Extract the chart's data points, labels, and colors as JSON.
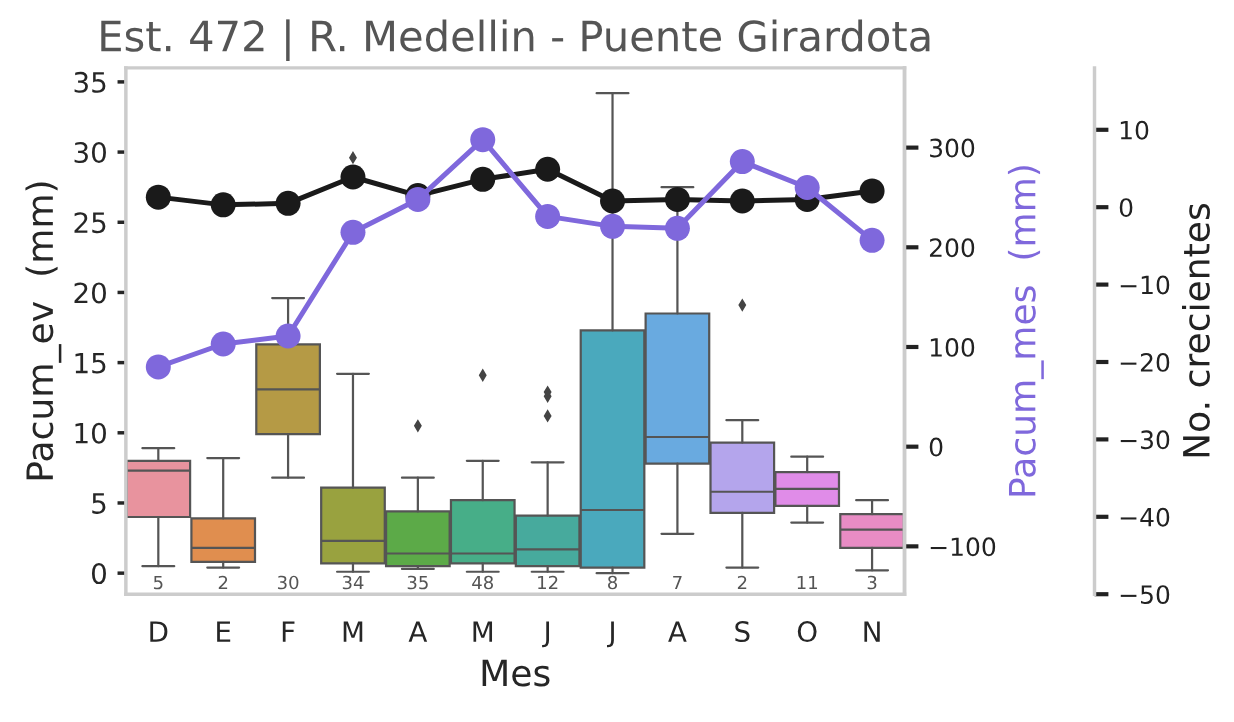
{
  "chart_data": {
    "type": "box",
    "title": "Est. 472 | R. Medellin - Puente Girardota",
    "xlabel": "Mes",
    "ylabel": "Pacum_ev  (mm)",
    "y2label": "Pacum_mes  (mm)",
    "y3label": "No. crecientes",
    "categories": [
      "D",
      "E",
      "F",
      "M",
      "A",
      "M",
      "J",
      "J",
      "A",
      "S",
      "O",
      "N"
    ],
    "colors": [
      "#e8939e",
      "#e08e4f",
      "#b59a45",
      "#99a23f",
      "#5caa48",
      "#47ae88",
      "#47aa9d",
      "#4aa9bd",
      "#69aae0",
      "#b4a5ec",
      "#e08ce8",
      "#e88cc4"
    ],
    "boxes": [
      {
        "low": 0.5,
        "q1": 4.0,
        "median": 7.3,
        "q3": 8.0,
        "high": 8.9
      },
      {
        "low": 0.4,
        "q1": 0.8,
        "median": 1.8,
        "q3": 3.9,
        "high": 8.2
      },
      {
        "low": 6.8,
        "q1": 9.9,
        "median": 13.1,
        "q3": 16.3,
        "high": 19.6
      },
      {
        "low": 0.1,
        "q1": 0.7,
        "median": 2.3,
        "q3": 6.1,
        "high": 14.2,
        "outliers": [
          29.6
        ]
      },
      {
        "low": 0.3,
        "q1": 0.5,
        "median": 1.4,
        "q3": 4.4,
        "high": 6.8,
        "outliers": [
          10.5
        ]
      },
      {
        "low": 0.1,
        "q1": 0.7,
        "median": 1.4,
        "q3": 5.2,
        "high": 8.0,
        "outliers": [
          14.1
        ]
      },
      {
        "low": 0.1,
        "q1": 0.5,
        "median": 1.7,
        "q3": 4.1,
        "high": 7.9,
        "outliers": [
          12.9,
          12.6,
          11.2
        ]
      },
      {
        "low": 0.0,
        "q1": 0.4,
        "median": 4.5,
        "q3": 17.3,
        "high": 34.2
      },
      {
        "low": 2.8,
        "q1": 7.8,
        "median": 9.7,
        "q3": 18.5,
        "high": 27.5
      },
      {
        "low": 0.4,
        "q1": 4.3,
        "median": 5.8,
        "q3": 9.3,
        "high": 10.9,
        "outliers": [
          19.1
        ]
      },
      {
        "low": 3.6,
        "q1": 4.8,
        "median": 6.0,
        "q3": 7.2,
        "high": 8.3
      },
      {
        "low": 0.2,
        "q1": 1.8,
        "median": 3.1,
        "q3": 4.2,
        "high": 5.2
      }
    ],
    "series": [
      {
        "type": "line",
        "axis": "y2",
        "color": "#7f68dc",
        "marker": "circle",
        "values": [
          80,
          103,
          111,
          215,
          248,
          308,
          231,
          221,
          219,
          286,
          260,
          207
        ]
      },
      {
        "type": "line",
        "axis": "y3",
        "color": "#1a1a1a",
        "marker": "circle",
        "values": [
          1.3,
          0.3,
          0.5,
          3.9,
          1.5,
          3.6,
          4.9,
          0.8,
          1.0,
          0.8,
          1.0,
          2.1
        ]
      }
    ],
    "ylim": [
      -1.5,
      36
    ],
    "yticks": [
      0,
      5,
      10,
      15,
      20,
      25,
      30,
      35
    ],
    "y2lim": [
      -148,
      380
    ],
    "y2ticks": [
      {
        "value": -100,
        "label": "−100"
      },
      0,
      100,
      200,
      300
    ],
    "y3lim": [
      -50,
      18
    ],
    "y3ticks": [
      {
        "value": -50,
        "label": "−50"
      },
      {
        "value": -40,
        "label": "−40"
      },
      {
        "value": -30,
        "label": "−30"
      },
      {
        "value": -20,
        "label": "−20"
      },
      {
        "value": -10,
        "label": "−10"
      },
      0,
      10
    ],
    "annotations": [
      "5",
      "2",
      "30",
      "34",
      "35",
      "48",
      "12",
      "8",
      "7",
      "2",
      "11",
      "3"
    ],
    "grid": false,
    "legend": false
  }
}
